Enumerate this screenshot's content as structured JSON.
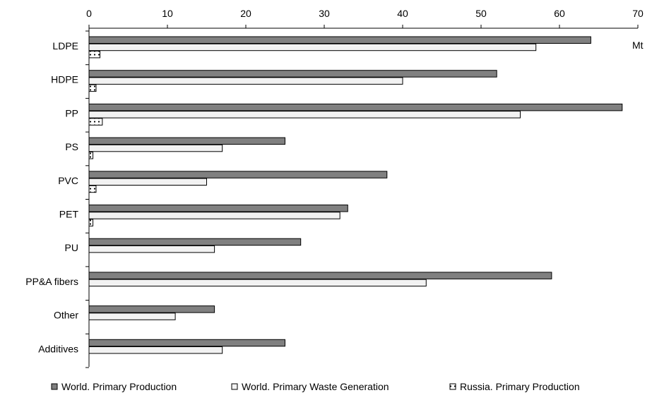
{
  "chart_data": {
    "type": "bar",
    "orientation": "horizontal",
    "unit_label": "Mt",
    "xlim": [
      0,
      70
    ],
    "x_ticks": [
      0,
      10,
      20,
      30,
      40,
      50,
      60,
      70
    ],
    "x_axis_position": "top",
    "categories": [
      "LDPE",
      "HDPE",
      "PP",
      "PS",
      "PVC",
      "PET",
      "PU",
      "PP&A fibers",
      "Other",
      "Additives"
    ],
    "series": [
      {
        "name": "World. Primary Production",
        "fill": "#808080",
        "pattern": "solid",
        "values": [
          64,
          52,
          68,
          25,
          38,
          33,
          27,
          59,
          16,
          25
        ]
      },
      {
        "name": "World. Primary Waste Generation",
        "fill": "#f2f2f2",
        "pattern": "solid",
        "values": [
          57,
          40,
          55,
          17,
          15,
          32,
          16,
          43,
          11,
          17
        ]
      },
      {
        "name": "Russia. Primary Production",
        "fill": "#ffffff",
        "pattern": "dots",
        "values": [
          1.4,
          0.9,
          1.7,
          0.5,
          0.9,
          0.5,
          null,
          null,
          null,
          null
        ]
      }
    ],
    "grid": false,
    "legend_position": "bottom"
  }
}
